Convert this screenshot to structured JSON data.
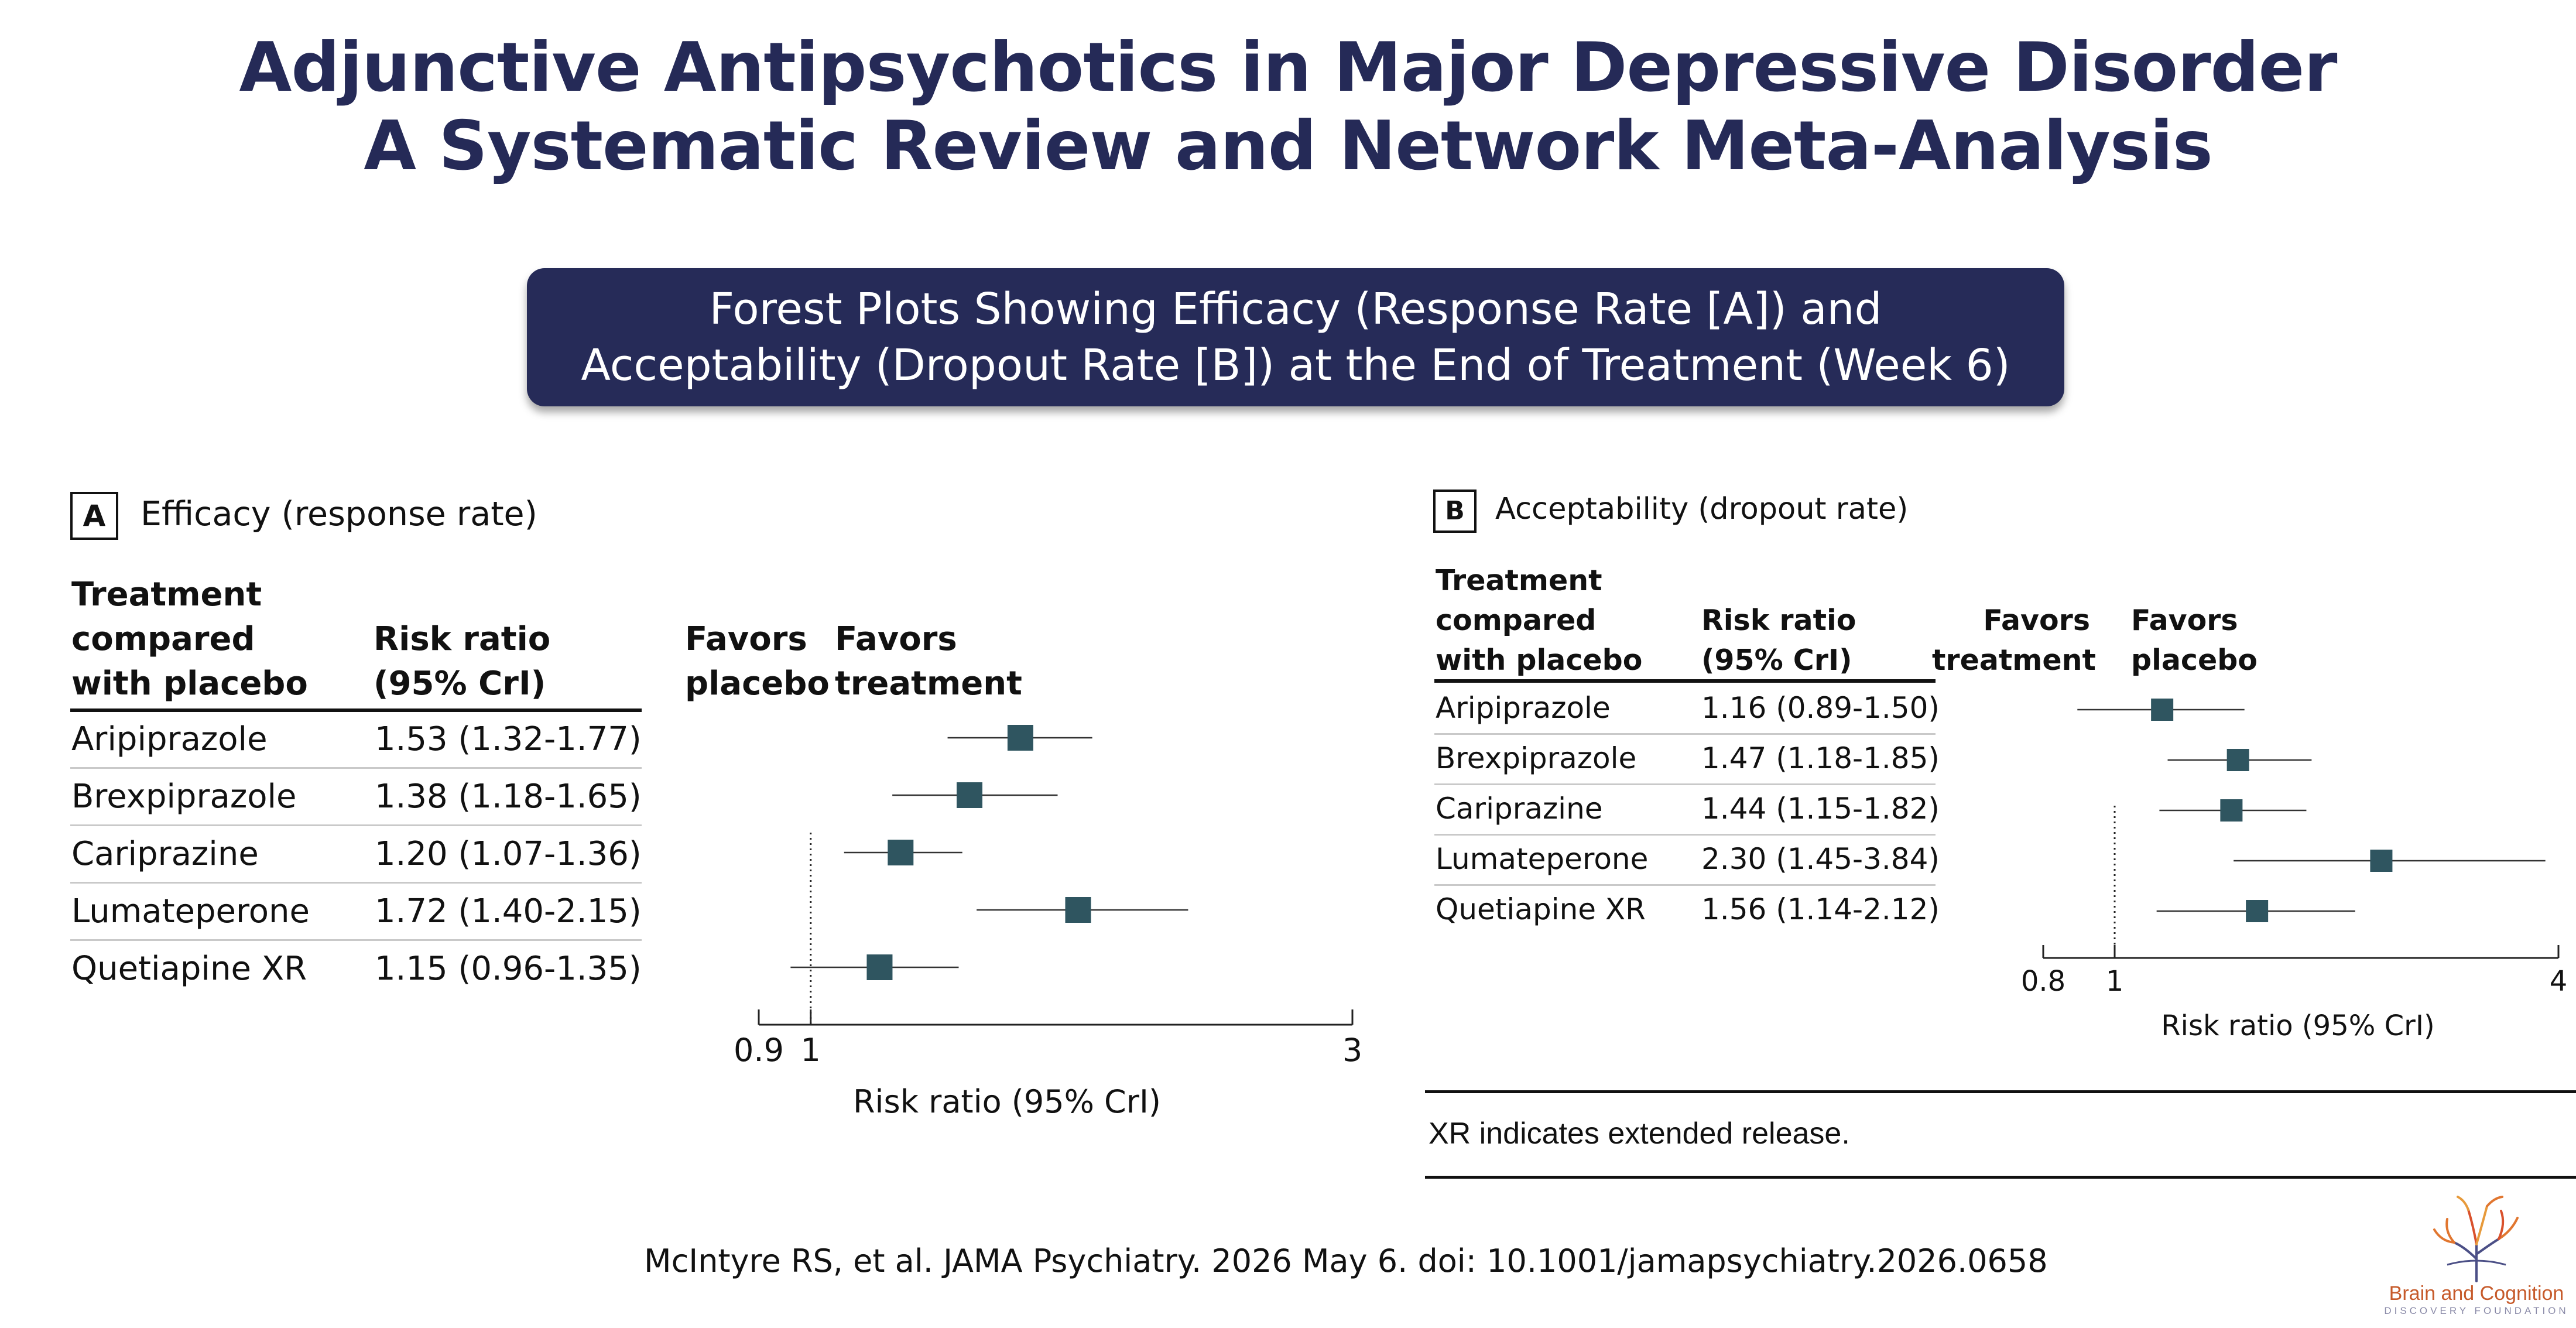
{
  "title": {
    "line1": "Adjunctive Antipsychotics  in Major Depressive Disorder",
    "line2": "A Systematic Review and Network Meta-Analysis"
  },
  "banner": {
    "line1": "Forest Plots Showing Efficacy (Response Rate [A]) and",
    "line2": "Acceptability (Dropout Rate [B]) at the End of Treatment (Week 6)"
  },
  "panelA": {
    "letter": "A",
    "title": "Efficacy (response rate)",
    "col1_header": [
      "Treatment",
      "compared",
      "with placebo"
    ],
    "col2_header": [
      "Risk ratio",
      "(95% CrI)"
    ],
    "favors_left": [
      "Favors",
      "placebo"
    ],
    "favors_right": [
      "Favors",
      "treatment"
    ],
    "rows": [
      {
        "treatment": "Aripiprazole",
        "ci_text": "1.53 (1.32-1.77)"
      },
      {
        "treatment": "Brexpiprazole",
        "ci_text": "1.38 (1.18-1.65)"
      },
      {
        "treatment": "Cariprazine",
        "ci_text": "1.20 (1.07-1.36)"
      },
      {
        "treatment": "Lumateperone",
        "ci_text": "1.72 (1.40-2.15)"
      },
      {
        "treatment": "Quetiapine XR",
        "ci_text": "1.15 (0.96-1.35)"
      }
    ],
    "ticks": [
      "0.9",
      "1",
      "3"
    ],
    "xlabel": "Risk ratio (95% CrI)"
  },
  "panelB": {
    "letter": "B",
    "title": "Acceptability (dropout rate)",
    "col1_header": [
      "Treatment",
      "compared",
      "with placebo"
    ],
    "col2_header": [
      "Risk ratio",
      "(95% CrI)"
    ],
    "favors_left": [
      "Favors",
      "treatment"
    ],
    "favors_right": [
      "Favors",
      "placebo"
    ],
    "rows": [
      {
        "treatment": "Aripiprazole",
        "ci_text": "1.16 (0.89-1.50)"
      },
      {
        "treatment": "Brexpiprazole",
        "ci_text": "1.47 (1.18-1.85)"
      },
      {
        "treatment": "Cariprazine",
        "ci_text": "1.44 (1.15-1.82)"
      },
      {
        "treatment": "Lumateperone",
        "ci_text": "2.30 (1.45-3.84)"
      },
      {
        "treatment": "Quetiapine XR",
        "ci_text": "1.56 (1.14-2.12)"
      }
    ],
    "ticks": [
      "0.8",
      "1",
      "4"
    ],
    "xlabel": "Risk ratio (95% CrI)",
    "footnote": "XR indicates extended release."
  },
  "chart_data": [
    {
      "type": "forest",
      "title": "Efficacy (response rate)",
      "xlabel": "Risk ratio (95% CrI)",
      "xscale": "log",
      "xlim": [
        0.9,
        3
      ],
      "xticks": [
        0.9,
        1,
        3
      ],
      "reference_line": 1,
      "marker_color": "#2f5560",
      "categories": [
        "Aripiprazole",
        "Brexpiprazole",
        "Cariprazine",
        "Lumateperone",
        "Quetiapine XR"
      ],
      "values": [
        1.53,
        1.38,
        1.2,
        1.72,
        1.15
      ],
      "lower": [
        1.32,
        1.18,
        1.07,
        1.4,
        0.96
      ],
      "upper": [
        1.77,
        1.65,
        1.36,
        2.15,
        1.35
      ]
    },
    {
      "type": "forest",
      "title": "Acceptability (dropout rate)",
      "xlabel": "Risk ratio (95% CrI)",
      "xscale": "log",
      "xlim": [
        0.8,
        4
      ],
      "xticks": [
        0.8,
        1,
        4
      ],
      "reference_line": 1,
      "marker_color": "#2f5560",
      "categories": [
        "Aripiprazole",
        "Brexpiprazole",
        "Cariprazine",
        "Lumateperone",
        "Quetiapine XR"
      ],
      "values": [
        1.16,
        1.47,
        1.44,
        2.3,
        1.56
      ],
      "lower": [
        0.89,
        1.18,
        1.15,
        1.45,
        1.14
      ],
      "upper": [
        1.5,
        1.85,
        1.82,
        3.84,
        2.12
      ]
    }
  ],
  "citation": "McIntyre RS, et al. JAMA Psychiatry. 2026 May 6.  doi: 10.1001/jamapsychiatry.2026.0658",
  "logo": {
    "name": "Brain and Cognition",
    "subtitle": "DISCOVERY FOUNDATION",
    "icon": "tree-brain-logo-icon"
  }
}
